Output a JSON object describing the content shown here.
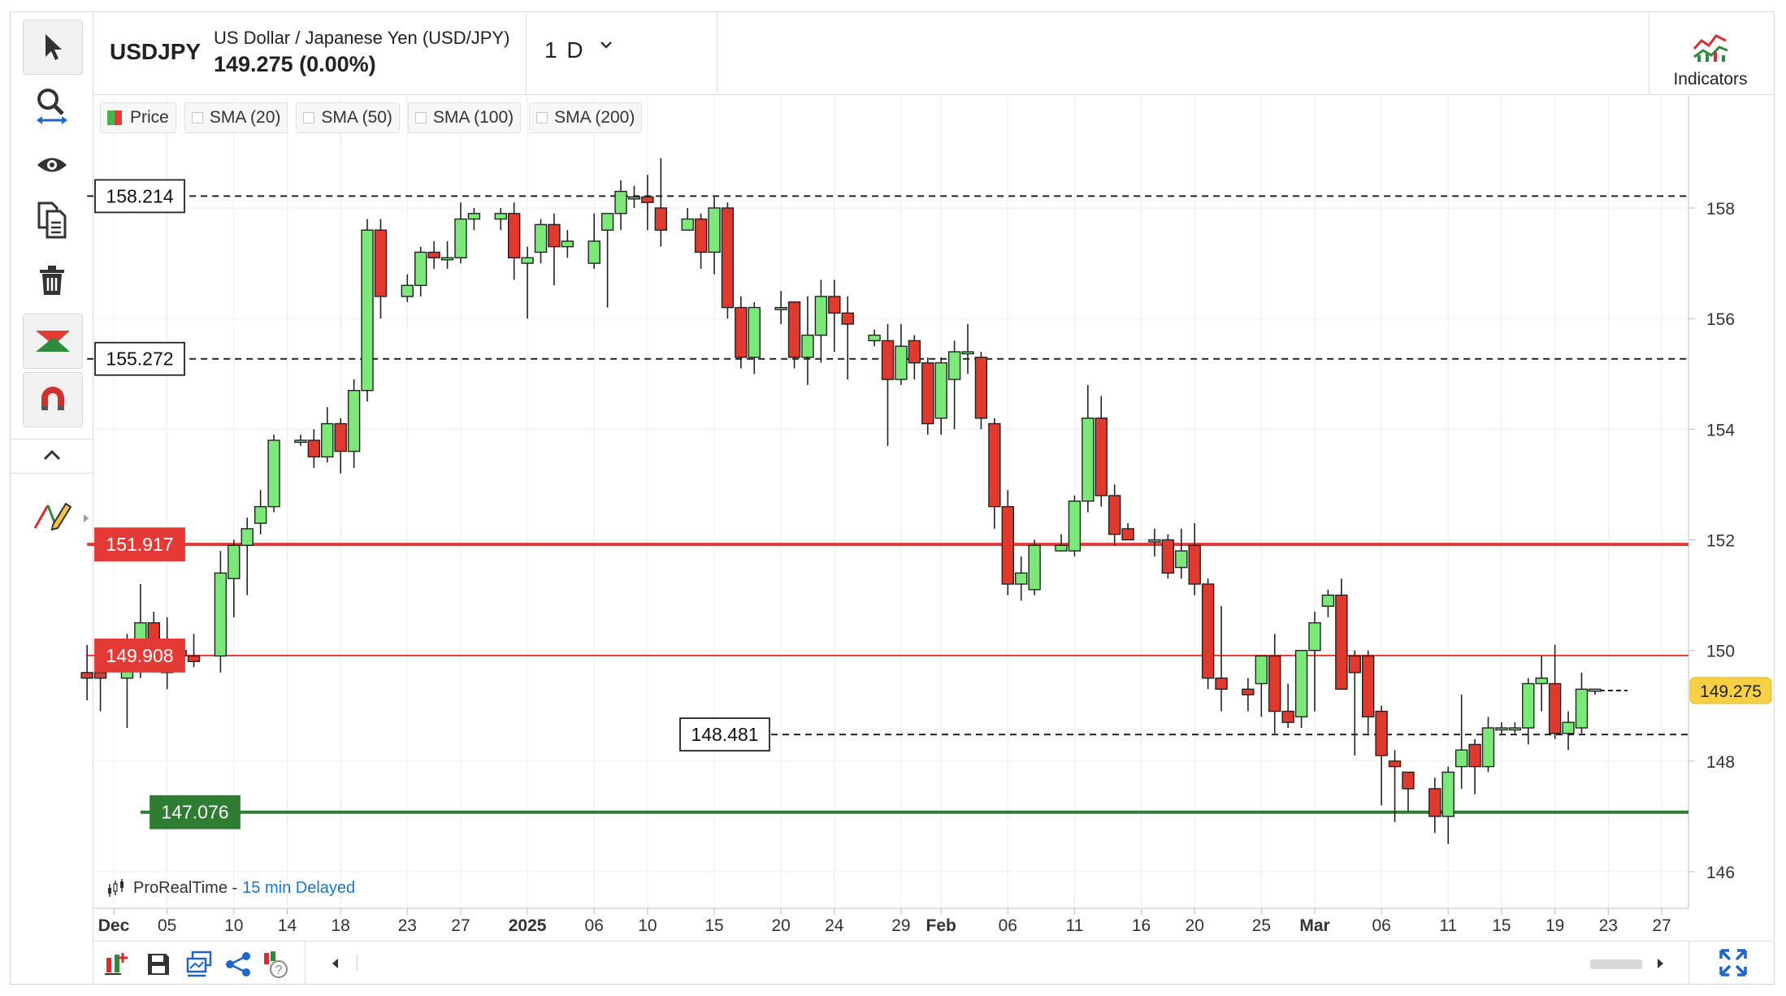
{
  "header": {
    "symbol": "USDJPY",
    "pair_name": "US Dollar / Japanese Yen (USD/JPY)",
    "price_change": "149.275 (0.00%)",
    "timeframe": "1 D",
    "indicators_label": "Indicators"
  },
  "legend": {
    "items": [
      "Price",
      "SMA (20)",
      "SMA (50)",
      "SMA (100)",
      "SMA (200)"
    ]
  },
  "credit": {
    "source": "ProRealTime -",
    "delay": "15 min Delayed"
  },
  "toolbar": {
    "icons": [
      "cursor-icon",
      "zoom-icon",
      "eye-icon",
      "copy-icon",
      "trash-icon",
      "chart-style-icon",
      "magnet-icon",
      "collapse-icon",
      "drawing-pencil-icon"
    ]
  },
  "bottom_bar": {
    "icons": [
      "add-chart-icon",
      "save-icon",
      "layouts-icon",
      "share-icon",
      "help-icon",
      "scroll-left-icon",
      "scroll-right-icon",
      "fullscreen-icon"
    ]
  },
  "colors": {
    "up": "#7de87a",
    "down": "#e03a2f",
    "resistance": "#e53935",
    "support": "#2e7d32",
    "last_price_tag": "#f7d046"
  },
  "chart_data": {
    "type": "candlestick",
    "ylim": [
      145.6,
      159.2
    ],
    "y_ticks": [
      146,
      148,
      150,
      152,
      154,
      156,
      158
    ],
    "y_tick_labels": [
      "146",
      "148",
      "150",
      "152",
      "154",
      "156",
      "158"
    ],
    "x_ticks": [
      {
        "date": "2024-12-01",
        "label": "Dec",
        "bold": true
      },
      {
        "date": "2024-12-05",
        "label": "05"
      },
      {
        "date": "2024-12-10",
        "label": "10"
      },
      {
        "date": "2024-12-14",
        "label": "14"
      },
      {
        "date": "2024-12-18",
        "label": "18"
      },
      {
        "date": "2024-12-23",
        "label": "23"
      },
      {
        "date": "2024-12-27",
        "label": "27"
      },
      {
        "date": "2025-01-01",
        "label": "2025",
        "bold": true
      },
      {
        "date": "2025-01-06",
        "label": "06"
      },
      {
        "date": "2025-01-10",
        "label": "10"
      },
      {
        "date": "2025-01-15",
        "label": "15"
      },
      {
        "date": "2025-01-20",
        "label": "20"
      },
      {
        "date": "2025-01-24",
        "label": "24"
      },
      {
        "date": "2025-01-29",
        "label": "29"
      },
      {
        "date": "2025-02-01",
        "label": "Feb",
        "bold": true
      },
      {
        "date": "2025-02-06",
        "label": "06"
      },
      {
        "date": "2025-02-11",
        "label": "11"
      },
      {
        "date": "2025-02-16",
        "label": "16"
      },
      {
        "date": "2025-02-20",
        "label": "20"
      },
      {
        "date": "2025-02-25",
        "label": "25"
      },
      {
        "date": "2025-03-01",
        "label": "Mar",
        "bold": true
      },
      {
        "date": "2025-03-06",
        "label": "06"
      },
      {
        "date": "2025-03-11",
        "label": "11"
      },
      {
        "date": "2025-03-15",
        "label": "15"
      },
      {
        "date": "2025-03-19",
        "label": "19"
      },
      {
        "date": "2025-03-23",
        "label": "23"
      },
      {
        "date": "2025-03-27",
        "label": "27"
      }
    ],
    "candles": [
      {
        "date": "2024-11-29",
        "o": 149.6,
        "h": 150.1,
        "l": 149.1,
        "c": 149.5
      },
      {
        "date": "2024-11-30",
        "o": 149.6,
        "h": 150.0,
        "l": 148.9,
        "c": 149.5
      },
      {
        "date": "2024-12-02",
        "o": 149.5,
        "h": 150.3,
        "l": 148.6,
        "c": 149.8
      },
      {
        "date": "2024-12-03",
        "o": 149.7,
        "h": 151.2,
        "l": 149.5,
        "c": 150.5
      },
      {
        "date": "2024-12-04",
        "o": 150.5,
        "h": 150.7,
        "l": 149.6,
        "c": 149.8
      },
      {
        "date": "2024-12-05",
        "o": 150.1,
        "h": 150.6,
        "l": 149.3,
        "c": 149.6
      },
      {
        "date": "2024-12-06",
        "o": 150.0,
        "h": 150.2,
        "l": 149.8,
        "c": 149.9
      },
      {
        "date": "2024-12-07",
        "o": 149.9,
        "h": 150.3,
        "l": 149.7,
        "c": 149.8
      },
      {
        "date": "2024-12-09",
        "o": 149.9,
        "h": 151.8,
        "l": 149.6,
        "c": 151.4
      },
      {
        "date": "2024-12-10",
        "o": 151.3,
        "h": 152.0,
        "l": 150.6,
        "c": 151.9
      },
      {
        "date": "2024-12-11",
        "o": 151.9,
        "h": 152.4,
        "l": 151.0,
        "c": 152.2
      },
      {
        "date": "2024-12-12",
        "o": 152.3,
        "h": 152.9,
        "l": 152.1,
        "c": 152.6
      },
      {
        "date": "2024-12-13",
        "o": 152.6,
        "h": 153.9,
        "l": 152.5,
        "c": 153.8
      },
      {
        "date": "2024-12-15",
        "o": 153.8,
        "h": 153.9,
        "l": 153.7,
        "c": 153.8
      },
      {
        "date": "2024-12-16",
        "o": 153.8,
        "h": 154.0,
        "l": 153.3,
        "c": 153.5
      },
      {
        "date": "2024-12-17",
        "o": 153.5,
        "h": 154.4,
        "l": 153.4,
        "c": 154.1
      },
      {
        "date": "2024-12-18",
        "o": 154.1,
        "h": 154.2,
        "l": 153.2,
        "c": 153.6
      },
      {
        "date": "2024-12-19",
        "o": 153.6,
        "h": 154.9,
        "l": 153.3,
        "c": 154.7
      },
      {
        "date": "2024-12-20",
        "o": 154.7,
        "h": 157.8,
        "l": 154.5,
        "c": 157.6
      },
      {
        "date": "2024-12-21",
        "o": 157.6,
        "h": 157.8,
        "l": 156.0,
        "c": 156.4
      },
      {
        "date": "2024-12-23",
        "o": 156.4,
        "h": 156.8,
        "l": 156.3,
        "c": 156.6
      },
      {
        "date": "2024-12-24",
        "o": 156.6,
        "h": 157.3,
        "l": 156.4,
        "c": 157.2
      },
      {
        "date": "2024-12-25",
        "o": 157.2,
        "h": 157.4,
        "l": 156.9,
        "c": 157.1
      },
      {
        "date": "2024-12-26",
        "o": 157.1,
        "h": 157.4,
        "l": 156.9,
        "c": 157.1
      },
      {
        "date": "2024-12-27",
        "o": 157.1,
        "h": 158.1,
        "l": 157.0,
        "c": 157.8
      },
      {
        "date": "2024-12-28",
        "o": 157.8,
        "h": 158.0,
        "l": 157.6,
        "c": 157.9
      },
      {
        "date": "2024-12-30",
        "o": 157.8,
        "h": 158.0,
        "l": 157.6,
        "c": 157.9
      },
      {
        "date": "2024-12-31",
        "o": 157.9,
        "h": 158.1,
        "l": 156.7,
        "c": 157.1
      },
      {
        "date": "2025-01-01",
        "o": 157.0,
        "h": 157.3,
        "l": 156.0,
        "c": 157.1
      },
      {
        "date": "2025-01-02",
        "o": 157.2,
        "h": 157.8,
        "l": 157.0,
        "c": 157.7
      },
      {
        "date": "2025-01-03",
        "o": 157.7,
        "h": 157.9,
        "l": 156.6,
        "c": 157.3
      },
      {
        "date": "2025-01-04",
        "o": 157.3,
        "h": 157.6,
        "l": 157.1,
        "c": 157.4
      },
      {
        "date": "2025-01-06",
        "o": 157.0,
        "h": 157.9,
        "l": 156.9,
        "c": 157.4
      },
      {
        "date": "2025-01-07",
        "o": 157.6,
        "h": 157.9,
        "l": 156.2,
        "c": 157.9
      },
      {
        "date": "2025-01-08",
        "o": 157.9,
        "h": 158.5,
        "l": 157.6,
        "c": 158.3
      },
      {
        "date": "2025-01-09",
        "o": 158.2,
        "h": 158.4,
        "l": 158.0,
        "c": 158.2
      },
      {
        "date": "2025-01-10",
        "o": 158.2,
        "h": 158.6,
        "l": 157.6,
        "c": 158.1
      },
      {
        "date": "2025-01-11",
        "o": 158.0,
        "h": 158.9,
        "l": 157.3,
        "c": 157.6
      },
      {
        "date": "2025-01-13",
        "o": 157.6,
        "h": 158.0,
        "l": 157.6,
        "c": 157.8
      },
      {
        "date": "2025-01-14",
        "o": 157.8,
        "h": 157.9,
        "l": 156.9,
        "c": 157.2
      },
      {
        "date": "2025-01-15",
        "o": 157.2,
        "h": 158.2,
        "l": 156.8,
        "c": 158.0
      },
      {
        "date": "2025-01-16",
        "o": 158.0,
        "h": 158.1,
        "l": 156.0,
        "c": 156.2
      },
      {
        "date": "2025-01-17",
        "o": 156.2,
        "h": 156.4,
        "l": 155.1,
        "c": 155.3
      },
      {
        "date": "2025-01-18",
        "o": 155.3,
        "h": 156.3,
        "l": 155.0,
        "c": 156.2
      },
      {
        "date": "2025-01-20",
        "o": 156.2,
        "h": 156.5,
        "l": 155.9,
        "c": 156.2
      },
      {
        "date": "2025-01-21",
        "o": 156.3,
        "h": 156.3,
        "l": 155.1,
        "c": 155.3
      },
      {
        "date": "2025-01-22",
        "o": 155.3,
        "h": 156.4,
        "l": 154.8,
        "c": 155.7
      },
      {
        "date": "2025-01-23",
        "o": 155.7,
        "h": 156.7,
        "l": 155.2,
        "c": 156.4
      },
      {
        "date": "2025-01-24",
        "o": 156.4,
        "h": 156.7,
        "l": 155.4,
        "c": 156.1
      },
      {
        "date": "2025-01-25",
        "o": 156.1,
        "h": 156.4,
        "l": 154.9,
        "c": 155.9
      },
      {
        "date": "2025-01-27",
        "o": 155.6,
        "h": 155.8,
        "l": 155.5,
        "c": 155.7
      },
      {
        "date": "2025-01-28",
        "o": 155.6,
        "h": 155.9,
        "l": 153.7,
        "c": 154.9
      },
      {
        "date": "2025-01-29",
        "o": 154.9,
        "h": 155.9,
        "l": 154.8,
        "c": 155.5
      },
      {
        "date": "2025-01-30",
        "o": 155.6,
        "h": 155.7,
        "l": 154.9,
        "c": 155.2
      },
      {
        "date": "2025-01-31",
        "o": 155.2,
        "h": 155.3,
        "l": 153.9,
        "c": 154.1
      },
      {
        "date": "2025-02-01",
        "o": 154.2,
        "h": 155.3,
        "l": 153.9,
        "c": 155.2
      },
      {
        "date": "2025-02-02",
        "o": 154.9,
        "h": 155.6,
        "l": 154.0,
        "c": 155.4
      },
      {
        "date": "2025-02-03",
        "o": 155.4,
        "h": 155.9,
        "l": 155.0,
        "c": 155.4
      },
      {
        "date": "2025-02-04",
        "o": 155.3,
        "h": 155.4,
        "l": 154.0,
        "c": 154.2
      },
      {
        "date": "2025-02-05",
        "o": 154.1,
        "h": 154.2,
        "l": 152.2,
        "c": 152.6
      },
      {
        "date": "2025-02-06",
        "o": 152.6,
        "h": 152.9,
        "l": 151.0,
        "c": 151.2
      },
      {
        "date": "2025-02-07",
        "o": 151.2,
        "h": 151.7,
        "l": 150.9,
        "c": 151.4
      },
      {
        "date": "2025-02-08",
        "o": 151.1,
        "h": 152.0,
        "l": 151.0,
        "c": 151.9
      },
      {
        "date": "2025-02-10",
        "o": 151.8,
        "h": 152.1,
        "l": 151.8,
        "c": 151.9
      },
      {
        "date": "2025-02-11",
        "o": 151.8,
        "h": 152.8,
        "l": 151.7,
        "c": 152.7
      },
      {
        "date": "2025-02-12",
        "o": 152.7,
        "h": 154.8,
        "l": 152.5,
        "c": 154.2
      },
      {
        "date": "2025-02-13",
        "o": 154.2,
        "h": 154.6,
        "l": 152.6,
        "c": 152.8
      },
      {
        "date": "2025-02-14",
        "o": 152.8,
        "h": 153.0,
        "l": 151.9,
        "c": 152.1
      },
      {
        "date": "2025-02-15",
        "o": 152.2,
        "h": 152.3,
        "l": 152.0,
        "c": 152.0
      },
      {
        "date": "2025-02-17",
        "o": 152.0,
        "h": 152.2,
        "l": 151.7,
        "c": 152.0
      },
      {
        "date": "2025-02-18",
        "o": 152.0,
        "h": 152.1,
        "l": 151.3,
        "c": 151.4
      },
      {
        "date": "2025-02-19",
        "o": 151.5,
        "h": 152.2,
        "l": 151.3,
        "c": 151.8
      },
      {
        "date": "2025-02-20",
        "o": 151.9,
        "h": 152.3,
        "l": 151.0,
        "c": 151.2
      },
      {
        "date": "2025-02-21",
        "o": 151.2,
        "h": 151.3,
        "l": 149.3,
        "c": 149.5
      },
      {
        "date": "2025-02-22",
        "o": 149.5,
        "h": 150.8,
        "l": 148.9,
        "c": 149.3
      },
      {
        "date": "2025-02-24",
        "o": 149.3,
        "h": 149.5,
        "l": 148.9,
        "c": 149.2
      },
      {
        "date": "2025-02-25",
        "o": 149.4,
        "h": 149.9,
        "l": 148.8,
        "c": 149.9
      },
      {
        "date": "2025-02-26",
        "o": 149.9,
        "h": 150.3,
        "l": 148.5,
        "c": 148.9
      },
      {
        "date": "2025-02-27",
        "o": 148.9,
        "h": 149.4,
        "l": 148.6,
        "c": 148.7
      },
      {
        "date": "2025-02-28",
        "o": 148.8,
        "h": 150.0,
        "l": 148.6,
        "c": 150.0
      },
      {
        "date": "2025-03-01",
        "o": 150.0,
        "h": 150.7,
        "l": 148.9,
        "c": 150.5
      },
      {
        "date": "2025-03-02",
        "o": 150.8,
        "h": 151.1,
        "l": 150.6,
        "c": 151.0
      },
      {
        "date": "2025-03-03",
        "o": 151.0,
        "h": 151.3,
        "l": 149.3,
        "c": 149.3
      },
      {
        "date": "2025-03-04",
        "o": 149.9,
        "h": 150.0,
        "l": 148.1,
        "c": 149.6
      },
      {
        "date": "2025-03-05",
        "o": 149.9,
        "h": 150.0,
        "l": 148.5,
        "c": 148.8
      },
      {
        "date": "2025-03-06",
        "o": 148.9,
        "h": 149.0,
        "l": 147.2,
        "c": 148.1
      },
      {
        "date": "2025-03-07",
        "o": 148.0,
        "h": 148.2,
        "l": 146.9,
        "c": 147.9
      },
      {
        "date": "2025-03-08",
        "o": 147.8,
        "h": 147.8,
        "l": 147.1,
        "c": 147.5
      },
      {
        "date": "2025-03-10",
        "o": 147.5,
        "h": 147.7,
        "l": 146.7,
        "c": 147.0
      },
      {
        "date": "2025-03-11",
        "o": 147.0,
        "h": 147.9,
        "l": 146.5,
        "c": 147.8
      },
      {
        "date": "2025-03-12",
        "o": 147.9,
        "h": 149.2,
        "l": 147.5,
        "c": 148.2
      },
      {
        "date": "2025-03-13",
        "o": 148.3,
        "h": 148.4,
        "l": 147.4,
        "c": 147.9
      },
      {
        "date": "2025-03-14",
        "o": 147.9,
        "h": 148.8,
        "l": 147.8,
        "c": 148.6
      },
      {
        "date": "2025-03-15",
        "o": 148.6,
        "h": 148.7,
        "l": 148.5,
        "c": 148.6
      },
      {
        "date": "2025-03-16",
        "o": 148.6,
        "h": 148.7,
        "l": 148.5,
        "c": 148.6
      },
      {
        "date": "2025-03-17",
        "o": 148.6,
        "h": 149.5,
        "l": 148.3,
        "c": 149.4
      },
      {
        "date": "2025-03-18",
        "o": 149.4,
        "h": 149.9,
        "l": 148.9,
        "c": 149.5
      },
      {
        "date": "2025-03-19",
        "o": 149.4,
        "h": 150.1,
        "l": 148.4,
        "c": 148.5
      },
      {
        "date": "2025-03-20",
        "o": 148.5,
        "h": 148.9,
        "l": 148.2,
        "c": 148.7
      },
      {
        "date": "2025-03-21",
        "o": 148.6,
        "h": 149.6,
        "l": 148.5,
        "c": 149.3
      },
      {
        "date": "2025-03-22",
        "o": 149.3,
        "h": 149.3,
        "l": 149.2,
        "c": 149.3
      }
    ],
    "levels": [
      {
        "value": 158.214,
        "label": "158.214",
        "style": "dashed",
        "color": "#222222",
        "tag": "box-white",
        "start_date": "2024-11-29"
      },
      {
        "value": 155.272,
        "label": "155.272",
        "style": "dashed",
        "color": "#222222",
        "tag": "box-white",
        "start_date": "2024-11-29"
      },
      {
        "value": 151.917,
        "label": "151.917",
        "style": "solid-thick",
        "color": "#e53935",
        "tag": "box-red",
        "start_date": "2024-11-29"
      },
      {
        "value": 149.908,
        "label": "149.908",
        "style": "solid-thin",
        "color": "#e53935",
        "tag": "box-red",
        "start_date": "2024-11-29"
      },
      {
        "value": 148.481,
        "label": "148.481",
        "style": "dashed",
        "color": "#222222",
        "tag": "box-white",
        "start_date": "2025-01-15"
      },
      {
        "value": 147.076,
        "label": "147.076",
        "style": "solid-thick",
        "color": "#2e7d32",
        "tag": "box-green",
        "start_date": "2024-12-03"
      }
    ],
    "last_price": {
      "value": 149.275,
      "label": "149.275"
    }
  }
}
